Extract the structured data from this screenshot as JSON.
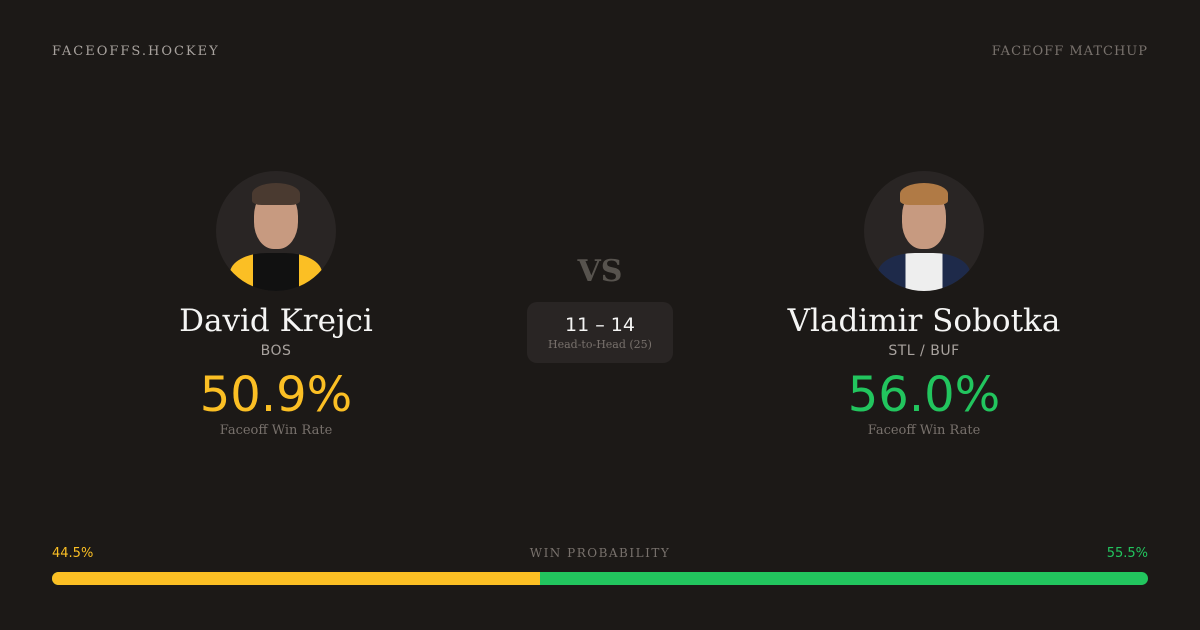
{
  "header": {
    "brand": "FACEOFFS.HOCKEY",
    "tag": "FACEOFF MATCHUP"
  },
  "colors": {
    "background": "#1c1917",
    "player1": "#fbbf24",
    "player2": "#22c55e"
  },
  "player1": {
    "name": "David Krejci",
    "team": "BOS",
    "win_rate": "50.9%",
    "win_rate_label": "Faceoff Win Rate"
  },
  "player2": {
    "name": "Vladimir Sobotka",
    "team": "STL / BUF",
    "win_rate": "56.0%",
    "win_rate_label": "Faceoff Win Rate"
  },
  "center": {
    "vs": "VS",
    "score": "11 – 14",
    "head_to_head": "Head-to-Head (25)"
  },
  "probability": {
    "label": "WIN PROBABILITY",
    "player1": "44.5%",
    "player2": "55.5%",
    "player1_fraction": 0.445
  }
}
